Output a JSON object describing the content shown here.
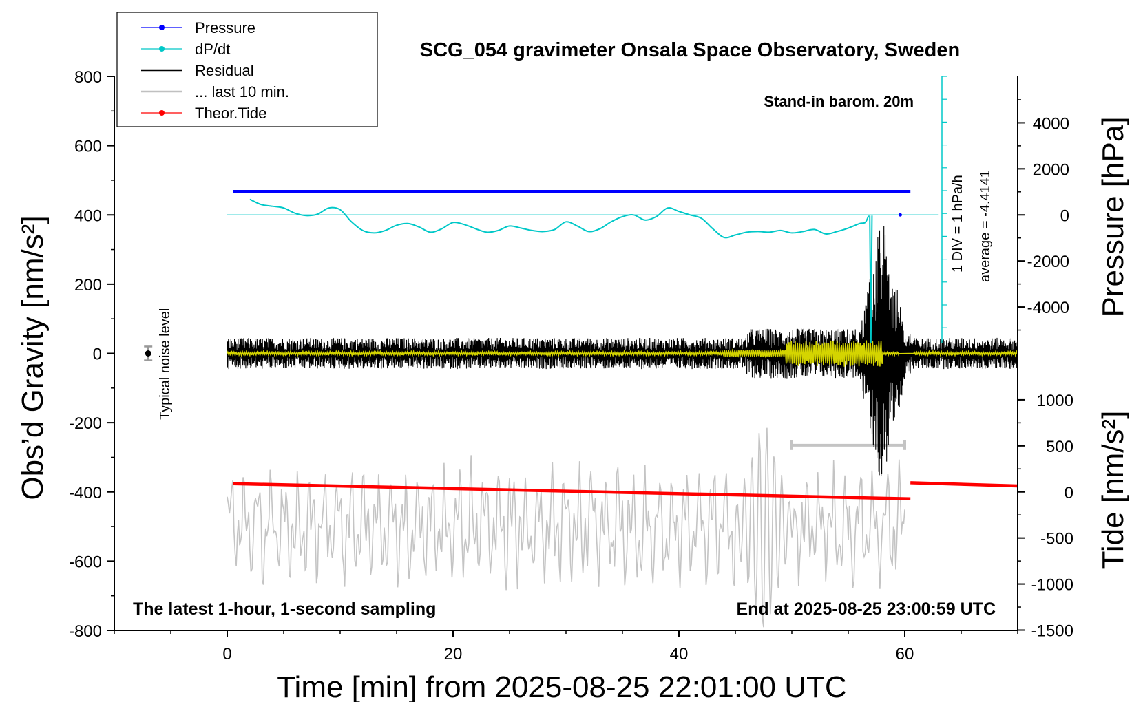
{
  "chart_data": {
    "type": "line",
    "title": "SCG_054 gravimeter Onsala Space Observatory, Sweden",
    "xlabel": "Time [min] from 2025-08-25 22:01:00 UTC",
    "ylabel_left": "Obs’d Gravity [nm/s²]",
    "ylabel_right_pressure": "Pressure [hPa]",
    "ylabel_right_tide": "Tide [nm/s²]",
    "xlim": [
      -10,
      70
    ],
    "ylim_gravity": [
      -800,
      800
    ],
    "x_ticks": [
      "0",
      "20",
      "40",
      "60"
    ],
    "y_ticks_gravity": [
      "800",
      "600",
      "400",
      "200",
      "0",
      "-200",
      "-400",
      "-600",
      "-800"
    ],
    "y_ticks_pressure": [
      "4000",
      "2000",
      "0",
      "-2000",
      "-4000"
    ],
    "y_ticks_tide": [
      "1000",
      "500",
      "0",
      "-500",
      "-1000",
      "-1500"
    ],
    "legend": {
      "placement": "top-left",
      "entries": [
        {
          "label": "Pressure",
          "color": "#0000ff",
          "marker": true
        },
        {
          "label": "dP/dt",
          "color": "#00c8c8",
          "marker": true
        },
        {
          "label": "Residual",
          "color": "#000000",
          "marker": false
        },
        {
          "label": "... last 10 min.",
          "color": "#c0c0c0",
          "marker": false
        },
        {
          "label": "Theor.Tide",
          "color": "#ff0000",
          "marker": true
        }
      ]
    },
    "annotations": {
      "barometer": "Stand-in barom. 20m",
      "scale_div": "1 DIV = 1 hPa/h",
      "average": "average = -4.4141",
      "noise": "Typical noise level",
      "footer_left": "The latest 1-hour, 1-second sampling",
      "footer_right": "End at 2025-08-25 23:00:59 UTC"
    },
    "series": {
      "pressure": {
        "x": [
          0.5,
          60.5
        ],
        "y_gravity_units": 467
      },
      "dpdt_baseline": {
        "x": [
          0,
          63
        ],
        "y_gravity_units": 400
      },
      "dpdt": {
        "x": [
          2,
          3,
          4,
          5,
          6,
          7,
          8,
          9,
          10,
          11,
          12,
          13,
          14,
          15,
          16,
          17,
          18,
          19,
          20,
          21,
          22,
          23,
          24,
          25,
          26,
          27,
          28,
          29,
          30,
          31,
          32,
          33,
          34,
          35,
          36,
          37,
          38,
          39,
          40,
          41,
          42,
          43,
          44,
          45,
          46,
          47,
          48,
          49,
          50,
          51,
          52,
          53,
          54,
          55,
          56,
          56.5,
          56.8
        ],
        "y": [
          445,
          430,
          425,
          420,
          405,
          398,
          402,
          420,
          415,
          380,
          355,
          348,
          355,
          370,
          375,
          365,
          350,
          360,
          378,
          372,
          360,
          350,
          355,
          368,
          362,
          355,
          352,
          358,
          380,
          368,
          352,
          360,
          380,
          395,
          400,
          385,
          395,
          420,
          410,
          400,
          390,
          360,
          335,
          342,
          350,
          352,
          350,
          355,
          348,
          352,
          358,
          345,
          352,
          362,
          375,
          378,
          398
        ]
      },
      "dpdt_spike": {
        "x": [
          56.9,
          57.0,
          57.1
        ],
        "y": [
          398,
          30,
          398
        ]
      },
      "dpdt_marker": {
        "x": 59.6,
        "y": 400
      },
      "residual": {
        "x_range": [
          0,
          70
        ],
        "center": 0,
        "noise_amplitude": 25,
        "burst_minutes": [
          56,
          60.5
        ],
        "burst_max_amplitude": 400
      },
      "residual_filtered": {
        "x_range": [
          0,
          70
        ],
        "center": 0,
        "burst_minutes": [
          49.5,
          58
        ],
        "burst_amplitude": 40
      },
      "last_10_min": {
        "x_range": [
          0,
          60
        ],
        "center": -500,
        "amplitude": 150,
        "burst_minutes": [
          45,
          50
        ],
        "burst_amplitude": 320
      },
      "last_10_min_bar": {
        "x": [
          50,
          60
        ],
        "y": -265
      },
      "tide": {
        "segments": [
          {
            "x": [
              0.5,
              60.5
            ],
            "y_tide": [
              90,
              -75
            ]
          },
          {
            "x": [
              60.5,
              70
            ],
            "y_tide": [
              100,
              65
            ]
          }
        ]
      },
      "noise_marker": {
        "x": -7,
        "y": 0,
        "error": 20
      }
    }
  }
}
